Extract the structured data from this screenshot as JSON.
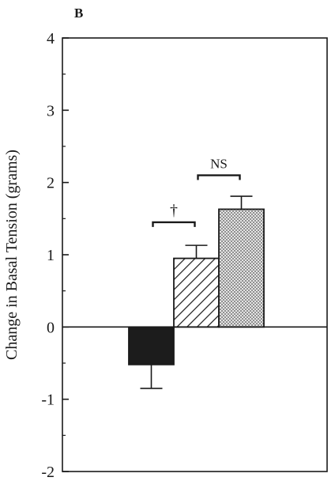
{
  "panel_label": "B",
  "chart_data": {
    "type": "bar",
    "categories": [
      "",
      "",
      ""
    ],
    "values": [
      -0.52,
      0.95,
      1.63
    ],
    "errors": [
      0.33,
      0.18,
      0.18
    ],
    "fills": [
      "solid-black",
      "diagonal-hatch",
      "stipple"
    ],
    "title": "",
    "xlabel": "",
    "ylabel": "Change in Basal Tension (grams)",
    "ylim": [
      -2,
      4
    ],
    "yticks": [
      -2,
      -1,
      0,
      1,
      2,
      3,
      4
    ],
    "ytick_labels": [
      "-2",
      "-1",
      "0",
      "1",
      "2",
      "3",
      "4"
    ],
    "grid": false,
    "annotations": [
      {
        "text": "†",
        "between_bars": [
          0,
          1
        ],
        "y": 1.45
      },
      {
        "text": "NS",
        "between_bars": [
          1,
          2
        ],
        "y": 2.1
      }
    ]
  }
}
